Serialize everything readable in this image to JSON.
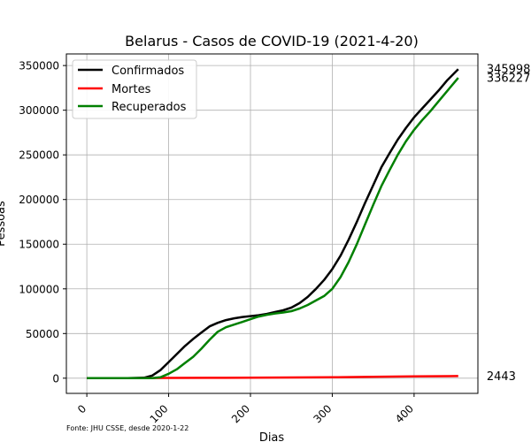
{
  "chart_data": {
    "type": "line",
    "title": "Belarus - Casos de COVID-19 (2021-4-20)",
    "xlabel": "Dias",
    "ylabel": "Pessoas",
    "xlim": [
      -25,
      478
    ],
    "ylim": [
      -17000,
      363000
    ],
    "xticks": [
      0,
      100,
      200,
      300,
      400
    ],
    "yticks": [
      0,
      50000,
      100000,
      150000,
      200000,
      250000,
      300000,
      350000
    ],
    "grid": true,
    "legend_position": "top-left",
    "source_note": "Fonte: JHU CSSE, desde 2020-1-22",
    "series": [
      {
        "name": "Confirmados",
        "color": "#000000",
        "end_label": "345998",
        "x": [
          0,
          50,
          70,
          80,
          90,
          100,
          110,
          120,
          130,
          140,
          150,
          160,
          170,
          180,
          190,
          200,
          210,
          220,
          230,
          240,
          250,
          260,
          270,
          280,
          290,
          300,
          310,
          320,
          330,
          340,
          350,
          360,
          370,
          380,
          390,
          400,
          410,
          420,
          430,
          440,
          454
        ],
        "y": [
          0,
          0,
          500,
          3000,
          9000,
          18000,
          27000,
          36000,
          44000,
          51000,
          58000,
          62000,
          65000,
          67000,
          68500,
          69500,
          70500,
          72000,
          74000,
          76000,
          79000,
          84000,
          91000,
          100000,
          110000,
          122000,
          137000,
          155000,
          175000,
          196000,
          216000,
          236000,
          252000,
          267000,
          280000,
          292000,
          302000,
          312000,
          322000,
          333000,
          345998
        ]
      },
      {
        "name": "Mortes",
        "color": "#ff0000",
        "end_label": "2443",
        "x": [
          0,
          60,
          100,
          150,
          200,
          250,
          300,
          350,
          400,
          454
        ],
        "y": [
          0,
          0,
          300,
          400,
          600,
          800,
          1000,
          1500,
          2000,
          2443
        ]
      },
      {
        "name": "Recuperados",
        "color": "#008000",
        "end_label": "336227",
        "x": [
          0,
          80,
          90,
          100,
          110,
          120,
          130,
          140,
          150,
          160,
          170,
          180,
          190,
          200,
          210,
          220,
          230,
          240,
          250,
          260,
          270,
          280,
          290,
          300,
          310,
          320,
          330,
          340,
          350,
          360,
          370,
          380,
          390,
          400,
          410,
          420,
          430,
          440,
          454
        ],
        "y": [
          0,
          0,
          1000,
          5000,
          10000,
          17000,
          24000,
          33000,
          43000,
          52000,
          57000,
          60000,
          63000,
          66000,
          69000,
          71000,
          72500,
          73500,
          75000,
          78000,
          82000,
          87000,
          92000,
          100000,
          113000,
          130000,
          150000,
          172000,
          194000,
          215000,
          233000,
          250000,
          265000,
          278000,
          289000,
          299000,
          310000,
          321000,
          336227
        ]
      }
    ]
  }
}
